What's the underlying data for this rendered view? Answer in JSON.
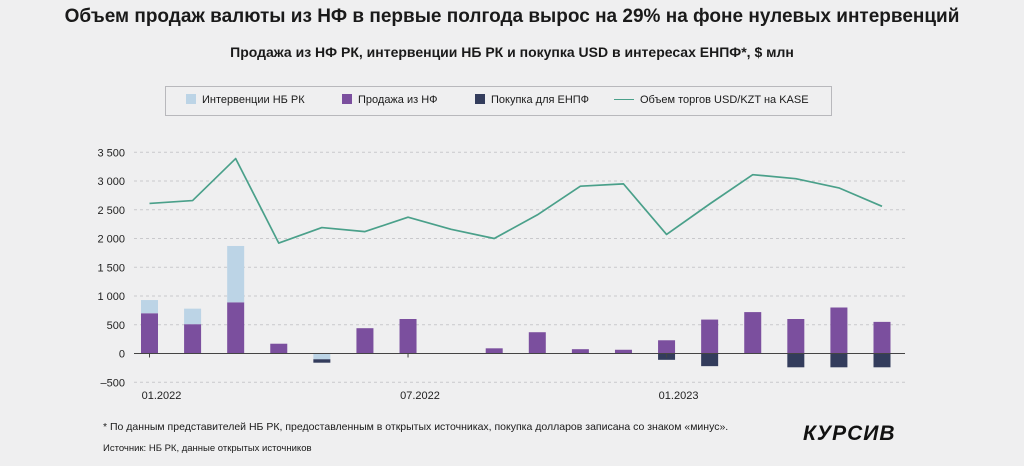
{
  "header": {
    "title": "Объем продаж валюты из НФ в первые полгода вырос на 29% на фоне нулевых интервенций",
    "subtitle": "Продажа из НФ РК, интервенции НБ РК и покупка USD в интересах ЕНПФ*, $ млн"
  },
  "legend": {
    "items": [
      {
        "label": "Интервенции НБ РК",
        "color": "#bcd4e6",
        "icon": "square"
      },
      {
        "label": "Продажа из НФ",
        "color": "#7b4f9e",
        "icon": "square"
      },
      {
        "label": "Покупка для ЕНПФ",
        "color": "#333c5c",
        "icon": "square"
      },
      {
        "label": "Объем торгов USD/KZT на KASE",
        "color": "#4aa08a",
        "icon": "line"
      }
    ]
  },
  "chart_data": {
    "type": "bar",
    "x": [
      "01.2022",
      "02.2022",
      "03.2022",
      "04.2022",
      "05.2022",
      "06.2022",
      "07.2022",
      "08.2022",
      "09.2022",
      "10.2022",
      "11.2022",
      "12.2022",
      "01.2023",
      "02.2023",
      "03.2023",
      "04.2023",
      "05.2023",
      "06.2023"
    ],
    "xtick_labels": [
      "01.2022",
      "",
      "",
      "",
      "",
      "",
      "07.2022",
      "",
      "",
      "",
      "",
      "",
      "01.2023",
      "",
      "",
      "",
      "",
      ""
    ],
    "ylim": [
      -500,
      3500
    ],
    "yticks": [
      -500,
      0,
      500,
      1000,
      1500,
      2000,
      2500,
      3000,
      3500
    ],
    "ytick_labels": [
      "–500",
      "0",
      "500",
      "1 000",
      "1 500",
      "2 000",
      "2 500",
      "3 000",
      "3 500"
    ],
    "grid": true,
    "series": [
      {
        "name": "Продажа из НФ",
        "type": "bar",
        "color": "#7b4f9e",
        "values": [
          700,
          510,
          890,
          170,
          0,
          440,
          600,
          0,
          90,
          370,
          75,
          65,
          230,
          590,
          720,
          600,
          800,
          550
        ]
      },
      {
        "name": "Интервенции НБ РК",
        "type": "bar",
        "color": "#bcd4e6",
        "values": [
          230,
          270,
          980,
          0,
          -100,
          0,
          0,
          0,
          0,
          0,
          0,
          0,
          0,
          0,
          0,
          0,
          0,
          0
        ]
      },
      {
        "name": "Покупка для ЕНПФ",
        "type": "bar",
        "color": "#333c5c",
        "values": [
          0,
          0,
          0,
          0,
          -60,
          0,
          0,
          0,
          0,
          0,
          0,
          0,
          -110,
          -220,
          0,
          -240,
          -240,
          -240
        ]
      },
      {
        "name": "Объем торгов USD/KZT на KASE",
        "type": "line",
        "color": "#4aa08a",
        "values": [
          2610,
          2660,
          3390,
          1920,
          2190,
          2120,
          2370,
          2160,
          2000,
          2410,
          2910,
          2950,
          2070,
          2600,
          3110,
          3040,
          2880,
          2560
        ]
      }
    ]
  },
  "footer": {
    "note": "* По данным представителей НБ РК, предоставленным в открытых источниках, покупка долларов записана со знаком «минус».",
    "source": "Источник: НБ РК, данные открытых источников",
    "logo": "КУРСИВ"
  }
}
